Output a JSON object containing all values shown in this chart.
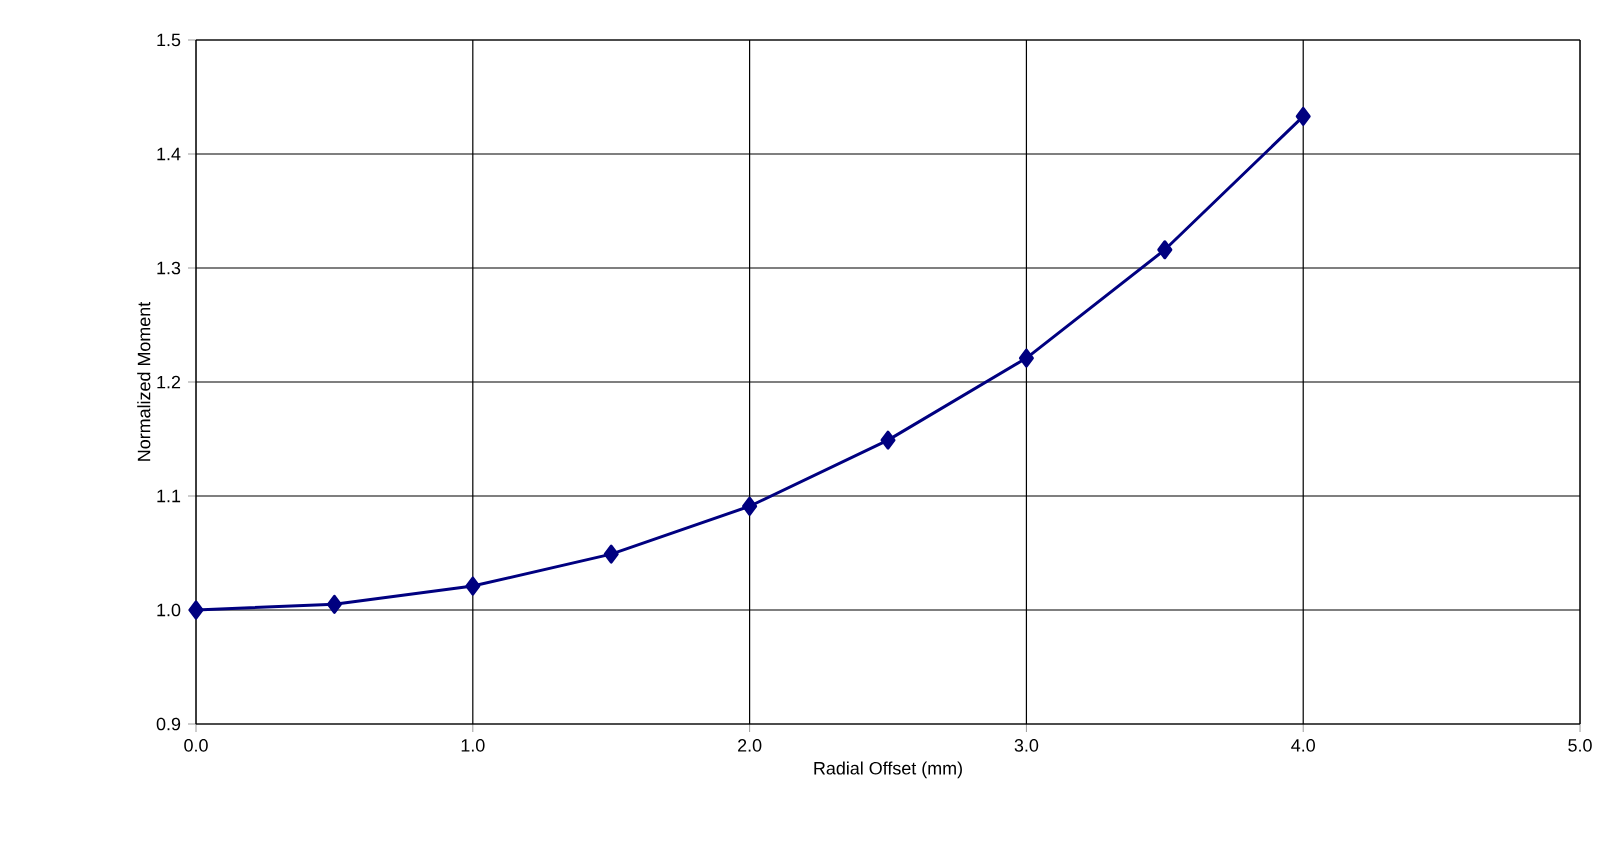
{
  "chart_data": {
    "type": "line",
    "xlabel": "Radial Offset (mm)",
    "ylabel": "Normalized Moment",
    "x": [
      0.0,
      0.5,
      1.0,
      1.5,
      2.0,
      2.5,
      3.0,
      3.5,
      4.0
    ],
    "series": [
      {
        "color": "#000080",
        "values": [
          1.0,
          1.005,
          1.021,
          1.049,
          1.091,
          1.149,
          1.221,
          1.316,
          1.433
        ]
      }
    ],
    "xlim": [
      0,
      5
    ],
    "ylim": [
      0.9,
      1.5
    ],
    "xticks": [
      {
        "value": 0,
        "label": "0.0"
      },
      {
        "value": 1,
        "label": "1.0"
      },
      {
        "value": 2,
        "label": "2.0"
      },
      {
        "value": 3,
        "label": "3.0"
      },
      {
        "value": 4,
        "label": "4.0"
      },
      {
        "value": 5,
        "label": "5.0"
      }
    ],
    "yticks": [
      0.9,
      {
        "value": 1.0,
        "label": "1.0"
      },
      1.1,
      1.2,
      1.3,
      1.4,
      1.5
    ],
    "grid": true,
    "marker": "diamond",
    "line_style": "solid"
  }
}
